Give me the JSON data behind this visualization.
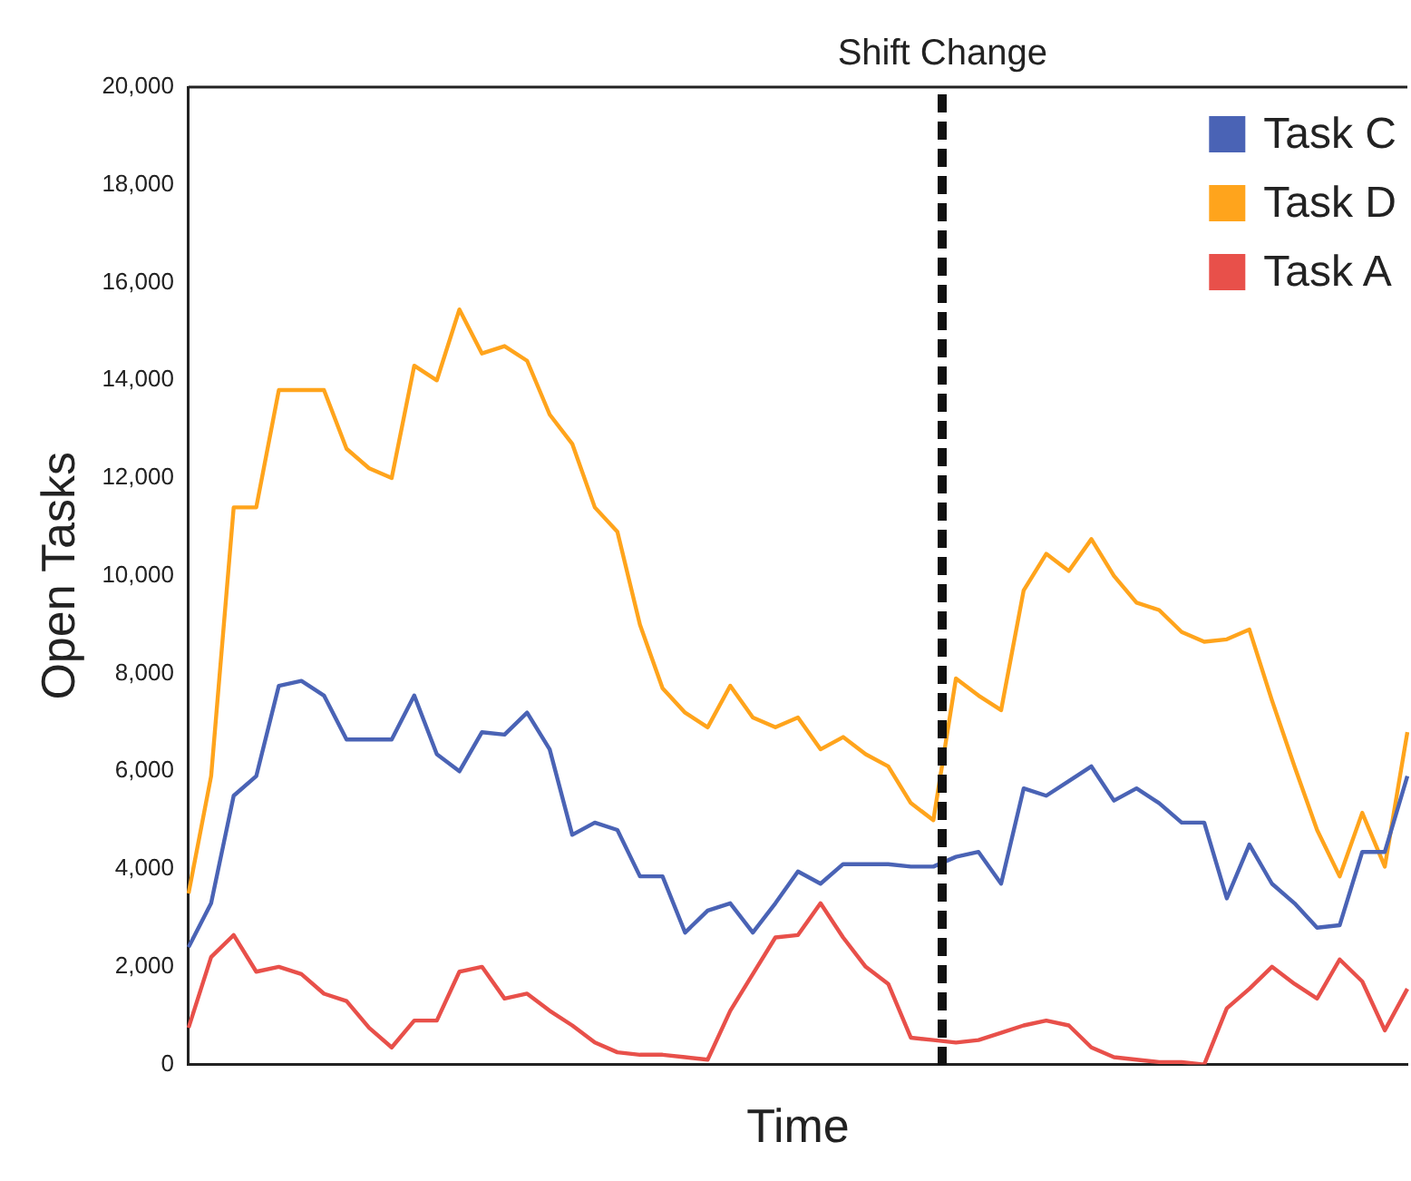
{
  "chart_data": {
    "type": "line",
    "xlabel": "Time",
    "ylabel": "Open Tasks",
    "categories": [
      null,
      null,
      null,
      null,
      null,
      null,
      null,
      null,
      null,
      null,
      null,
      null,
      null,
      null,
      null,
      null,
      null,
      null,
      null,
      null,
      null,
      null,
      null,
      null,
      null,
      null,
      null,
      null,
      null,
      null,
      null,
      null,
      null,
      null,
      null,
      null,
      null,
      null,
      null,
      null,
      null,
      null,
      null,
      null,
      null,
      null,
      null,
      null,
      null,
      null,
      null,
      null,
      null,
      null,
      null
    ],
    "series": [
      {
        "name": "Task C",
        "color": "#4a63b5",
        "values": [
          2400,
          3300,
          5500,
          5900,
          7750,
          7850,
          7550,
          6650,
          6650,
          6650,
          7550,
          6350,
          6000,
          6800,
          6750,
          7200,
          6450,
          4700,
          4950,
          4800,
          3850,
          3850,
          2700,
          3150,
          3300,
          2700,
          3300,
          3950,
          3700,
          4100,
          4100,
          4100,
          4050,
          4050,
          4250,
          4350,
          3700,
          5650,
          5500,
          5800,
          6100,
          5400,
          5650,
          5350,
          4950,
          4950,
          3400,
          4500,
          3700,
          3300,
          2800,
          2850,
          4350,
          4350,
          5900
        ]
      },
      {
        "name": "Task D",
        "color": "#ffa41c",
        "values": [
          3500,
          5900,
          11400,
          11400,
          13800,
          13800,
          13800,
          12600,
          12200,
          12000,
          14300,
          14000,
          15450,
          14550,
          14700,
          14400,
          13300,
          12700,
          11400,
          10900,
          9000,
          7700,
          7200,
          6900,
          7750,
          7100,
          6900,
          7100,
          6450,
          6700,
          6350,
          6100,
          5350,
          5000,
          7900,
          7550,
          7250,
          9700,
          10450,
          10100,
          10750,
          10000,
          9450,
          9300,
          8850,
          8650,
          8700,
          8900,
          7450,
          6100,
          4800,
          3850,
          5150,
          4050,
          6800
        ]
      },
      {
        "name": "Task A",
        "color": "#e8504a",
        "values": [
          750,
          2200,
          2650,
          1900,
          2000,
          1850,
          1450,
          1300,
          750,
          350,
          900,
          900,
          1900,
          2000,
          1350,
          1450,
          1100,
          800,
          450,
          250,
          200,
          200,
          150,
          100,
          1100,
          1850,
          2600,
          2650,
          3300,
          2600,
          2000,
          1650,
          550,
          500,
          450,
          500,
          650,
          800,
          900,
          800,
          350,
          150,
          100,
          50,
          50,
          0,
          1150,
          1550,
          2000,
          1650,
          1350,
          2150,
          1700,
          700,
          1550
        ]
      }
    ],
    "ylim": [
      0,
      20000
    ],
    "yticks": [
      0,
      {
        "value": 2000,
        "label": "2,000"
      },
      {
        "value": 4000,
        "label": "4,000"
      },
      {
        "value": 6000,
        "label": "6,000"
      },
      {
        "value": 8000,
        "label": "8,000"
      },
      {
        "value": 10000,
        "label": "10,000"
      },
      {
        "value": 12000,
        "label": "12,000"
      },
      {
        "value": 14000,
        "label": "14,000"
      },
      {
        "value": 16000,
        "label": "16,000"
      },
      {
        "value": 18000,
        "label": "18,000"
      },
      {
        "value": 20000,
        "label": "20,000"
      }
    ],
    "tick_labels": "y",
    "grid": false,
    "legend": "top right",
    "marker": "none",
    "line_style": "solid",
    "annotations": [
      "Shift Change"
    ]
  }
}
